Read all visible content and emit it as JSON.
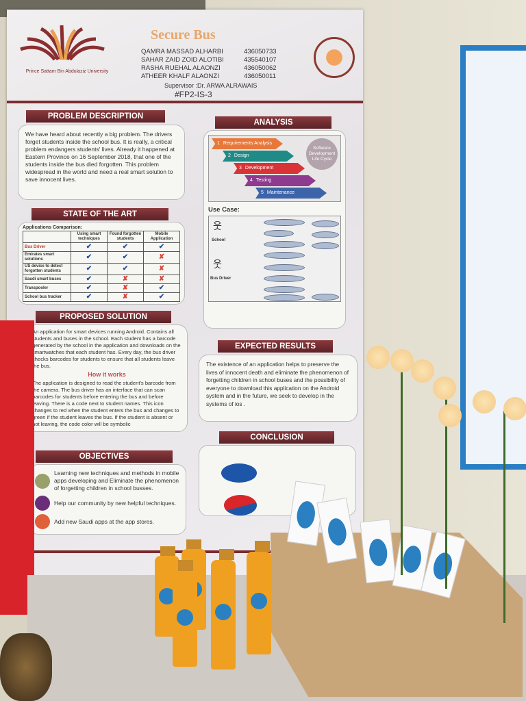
{
  "poster": {
    "title": "Secure Bus",
    "university": "Prince Sattam Bin Abdulaziz University",
    "team": [
      {
        "name": "QAMRA MASSAD ALHARBI",
        "id": "436050733"
      },
      {
        "name": "SAHAR ZAID ZOID ALOTIBI",
        "id": "435540107"
      },
      {
        "name": "RASHA RUEHAL ALAONZI",
        "id": "436050062"
      },
      {
        "name": "ATHEER KHALF ALAONZI",
        "id": "436050011"
      }
    ],
    "supervisor": "Supervisor :Dr. ARWA ALRAWAIS",
    "code": "#FP2-IS-3",
    "problem": {
      "heading": "PROBLEM DESCRIPTION",
      "text": "We have heard about recently a big problem. The drivers forget students inside the school bus. It is really, a critical problem endangers students' lives. Already it happened at Eastern Province on 16 September 2018, that one of the students inside the bus died forgotten. This problem widespread in the world and need a real smart solution to save innocent lives."
    },
    "state_of_art": {
      "heading": "STATE OF THE ART",
      "caption": "Applications Comparison:",
      "columns": [
        "",
        "Using smart techniques",
        "Found forgotten students",
        "Mobile Application"
      ],
      "rows": [
        {
          "name": "Bus Driver",
          "values": [
            "✔",
            "✔",
            "✔"
          ]
        },
        {
          "name": "Emirates smart solutions",
          "values": [
            "✔",
            "✔",
            "✘"
          ]
        },
        {
          "name": "US device to detect forgotten students",
          "values": [
            "✔",
            "✔",
            "✘"
          ]
        },
        {
          "name": "Saudi smart buses",
          "values": [
            "✔",
            "✘",
            "✘"
          ]
        },
        {
          "name": "Transpooler",
          "values": [
            "✔",
            "✘",
            "✔"
          ]
        },
        {
          "name": "School bus tracker",
          "values": [
            "✔",
            "✘",
            "✔"
          ]
        }
      ]
    },
    "analysis": {
      "heading": "ANALYSIS",
      "sdlc_label": "Software Development Life Cycle",
      "steps": [
        {
          "num": "1",
          "label": "Requirements Analysis",
          "color": "#e8783a"
        },
        {
          "num": "2",
          "label": "Design",
          "color": "#1f8a86"
        },
        {
          "num": "3",
          "label": "Development",
          "color": "#d83438"
        },
        {
          "num": "4",
          "label": "Testing",
          "color": "#8e3a8e"
        },
        {
          "num": "5",
          "label": "Maintenance",
          "color": "#3d63a8"
        }
      ],
      "use_case_heading": "Use Case:",
      "actors": [
        "School",
        "Bus Driver"
      ]
    },
    "proposed": {
      "heading": "PROPOSED SOLUTION",
      "text": "An application for smart devices running Android. Contains all students and buses in the school. Each student has a barcode generated by the school in the application and downloads on the smartwatches that each student has. Every day, the bus driver checks barcodes for students to ensure that all students leave the bus.",
      "subheading": "How it works",
      "text2": "The application is designed to read the student's barcode from the camera. The bus driver has an interface that can scan barcodes for students before entering the bus and before leaving. There is a code next to student names. This icon changes to red when the student enters the bus and changes to green if the student leaves the bus. If the student is absent or not leaving, the code color will be symbolic"
    },
    "expected": {
      "heading": "EXPECTED RESULTS",
      "text": "The existence of an application helps to preserve the lives of innocent death and eliminate the phenomenon of forgetting children in school buses and the possibility of everyone to download this application on the Android system and in the future, we seek to develop in the systems of ios ."
    },
    "objectives": {
      "heading": "OBJECTIVES",
      "items": [
        {
          "text": "Learning new techniques and methods in mobile apps developing and Eliminate the phenomenon of forgetting children in school busses.",
          "color": "#9aa06a",
          "icon": "clipboard-icon"
        },
        {
          "text": "Help our community by new helpful techniques.",
          "color": "#6b2e78",
          "icon": "globe-icon"
        },
        {
          "text": "Add new Saudi apps at the app stores.",
          "color": "#e0603a",
          "icon": "briefcase-icon"
        }
      ]
    },
    "conclusion": {
      "heading": "CONCLUSION",
      "pie1_color": "#1d56a8",
      "pie2_colors": [
        "#1d56a8",
        "#d8262a"
      ]
    }
  }
}
